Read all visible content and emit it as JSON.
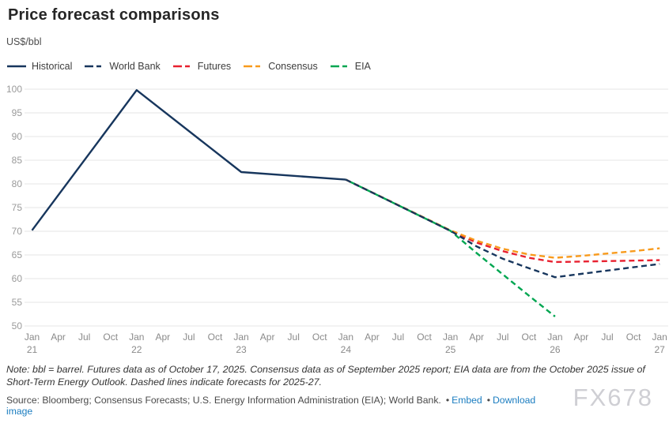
{
  "header": {
    "title": "Price forecast comparisons",
    "unit_label": "US$/bbl"
  },
  "chart_data": {
    "type": "line",
    "title": "Price forecast comparisons",
    "ylabel": "US$/bbl",
    "ylim": [
      50,
      100
    ],
    "grid": true,
    "legend_position": "top",
    "y_ticks": [
      100,
      95,
      90,
      85,
      80,
      75,
      70,
      65,
      60,
      55,
      50
    ],
    "x_ticks": [
      {
        "month": "Jan",
        "year": "21"
      },
      {
        "month": "Apr"
      },
      {
        "month": "Jul"
      },
      {
        "month": "Oct"
      },
      {
        "month": "Jan",
        "year": "22"
      },
      {
        "month": "Apr"
      },
      {
        "month": "Jul"
      },
      {
        "month": "Oct"
      },
      {
        "month": "Jan",
        "year": "23"
      },
      {
        "month": "Apr"
      },
      {
        "month": "Jul"
      },
      {
        "month": "Oct"
      },
      {
        "month": "Jan",
        "year": "24"
      },
      {
        "month": "Apr"
      },
      {
        "month": "Jul"
      },
      {
        "month": "Oct"
      },
      {
        "month": "Jan",
        "year": "25"
      },
      {
        "month": "Apr"
      },
      {
        "month": "Jul"
      },
      {
        "month": "Oct"
      },
      {
        "month": "Jan",
        "year": "26"
      },
      {
        "month": "Apr"
      },
      {
        "month": "Jul"
      },
      {
        "month": "Oct"
      },
      {
        "month": "Jan",
        "year": "27"
      }
    ],
    "series": [
      {
        "name": "Historical",
        "color": "#17365d",
        "dash": "solid",
        "z": 5,
        "points": [
          [
            0,
            70.2
          ],
          [
            4,
            99.8
          ],
          [
            8,
            82.5
          ],
          [
            12,
            80.9
          ]
        ]
      },
      {
        "name": "World Bank",
        "color": "#17365d",
        "dash": "dashed",
        "z": 4,
        "points": [
          [
            12,
            80.9
          ],
          [
            16,
            70.1
          ],
          [
            17,
            66.8
          ],
          [
            18,
            64.2
          ],
          [
            19,
            62.2
          ],
          [
            20,
            60.3
          ],
          [
            21,
            61.0
          ],
          [
            22,
            61.7
          ],
          [
            23,
            62.4
          ],
          [
            24,
            63.1
          ]
        ]
      },
      {
        "name": "Futures",
        "color": "#e8202f",
        "dash": "dashed",
        "z": 1,
        "points": [
          [
            12,
            80.9
          ],
          [
            16,
            70.1
          ],
          [
            17,
            67.6
          ],
          [
            18,
            65.8
          ],
          [
            19,
            64.4
          ],
          [
            20,
            63.5
          ],
          [
            21,
            63.6
          ],
          [
            22,
            63.7
          ],
          [
            23,
            63.8
          ],
          [
            24,
            63.9
          ]
        ]
      },
      {
        "name": "Consensus",
        "color": "#f89a1c",
        "dash": "dashed",
        "z": 2,
        "points": [
          [
            12,
            80.9
          ],
          [
            16,
            70.2
          ],
          [
            17,
            68.0
          ],
          [
            18,
            66.3
          ],
          [
            19,
            65.1
          ],
          [
            20,
            64.4
          ],
          [
            21,
            64.8
          ],
          [
            22,
            65.3
          ],
          [
            23,
            65.8
          ],
          [
            24,
            66.4
          ]
        ]
      },
      {
        "name": "EIA",
        "color": "#00a651",
        "dash": "dashed",
        "z": 3,
        "dashoffset": 6,
        "points": [
          [
            12,
            80.9
          ],
          [
            16,
            70.1
          ],
          [
            17,
            65.4
          ],
          [
            18,
            60.9
          ],
          [
            19,
            56.4
          ],
          [
            20,
            52.0
          ]
        ]
      }
    ]
  },
  "note": {
    "text": "Note: bbl = barrel. Futures data as of October 17, 2025. Consensus data as of September 2025 report; EIA data are from the October 2025 issue of Short-Term Energy Outlook. Dashed lines indicate forecasts for 2025-27."
  },
  "source": {
    "text": "Source: Bloomberg; Consensus Forecasts; U.S. Energy Information Administration (EIA); World Bank.",
    "bullet": "•",
    "links": [
      {
        "label": "Embed"
      },
      {
        "label": "Download image"
      }
    ]
  },
  "watermark": {
    "text": "FX678"
  },
  "colors": {
    "grid": "#e4e4e4",
    "y_tick_label": "#9a9a9a",
    "x_tick_label": "#8a8a8a",
    "link": "#1b7dc0"
  }
}
